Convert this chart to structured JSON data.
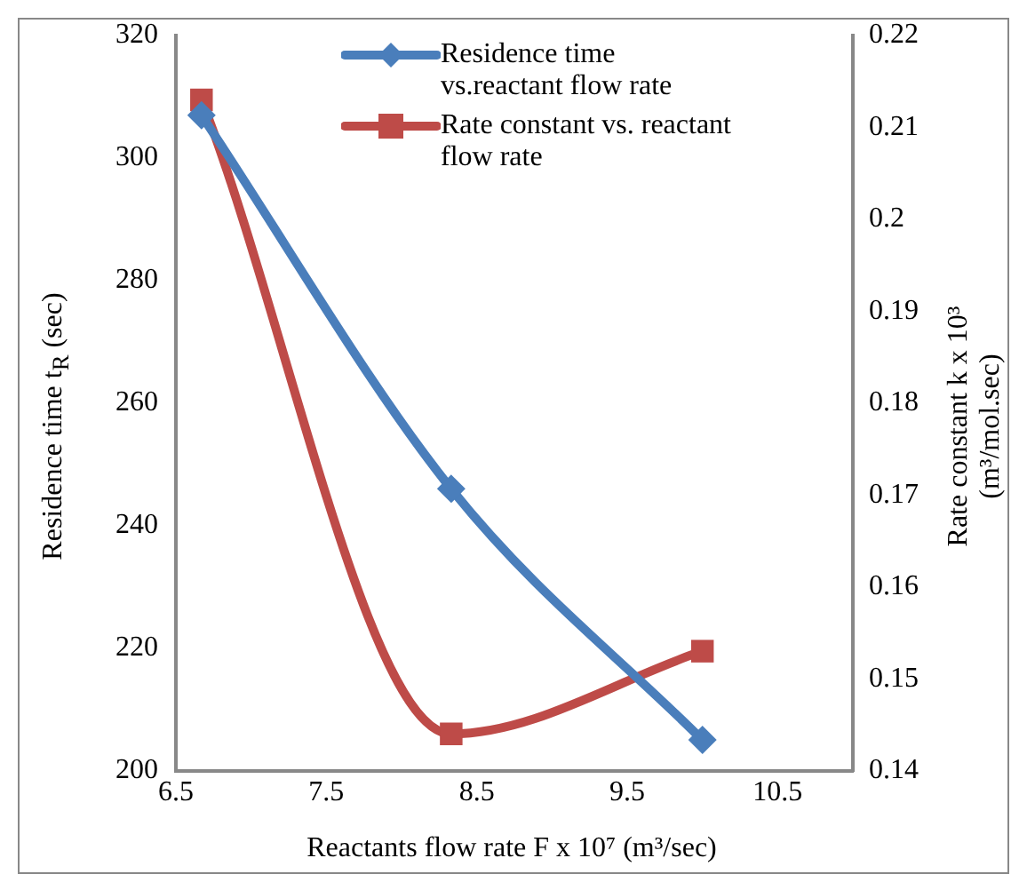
{
  "chart_data": {
    "type": "line",
    "xlabel": "Reactants flow rate F x 10⁷ (m³/sec)",
    "ylabel": "Residence time t$_{R}$ (sec)",
    "y2label": "Rate constant k x 10³ (m³/mol.sec)",
    "xlim": [
      6.5,
      11
    ],
    "xticks": [
      6.5,
      7.5,
      8.5,
      9.5,
      10.5
    ],
    "ylim": [
      200,
      320
    ],
    "yticks": [
      200,
      220,
      240,
      260,
      280,
      300,
      320
    ],
    "y2lim": [
      0.14,
      0.22
    ],
    "y2ticks": [
      0.14,
      0.15,
      0.16,
      0.17,
      0.18,
      0.19,
      0.2,
      0.21,
      0.22
    ],
    "x": [
      6.67,
      8.33,
      10
    ],
    "grid": false,
    "legend": "top right",
    "series": [
      {
        "name": "Residence time vs.reactant flow rate",
        "color": "#4a7ebb",
        "values": [
          307,
          246,
          205
        ],
        "marker": "diamond"
      },
      {
        "name": "Rate constant vs. reactant flow rate",
        "color": "#be4b48",
        "values": [
          0.213,
          0.144,
          0.153
        ],
        "axis": "y2",
        "marker": "square"
      }
    ]
  }
}
